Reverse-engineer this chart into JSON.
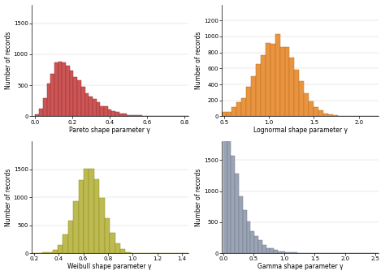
{
  "pareto": {
    "color": "#CC5555",
    "edge_color": "#993333",
    "xlabel": "Pareto shape parameter γ",
    "xlim": [
      -0.02,
      0.82
    ],
    "xticks": [
      0.0,
      0.2,
      0.4,
      0.6,
      0.8
    ],
    "ylim": [
      0,
      1800
    ],
    "yticks": [
      0,
      500,
      1000,
      1500
    ],
    "shape": 3.5,
    "scale": 0.055,
    "n": 9500,
    "bins": 40,
    "clip_min": 0.0,
    "clip_max": 0.82,
    "dist": "gamma"
  },
  "lognormal": {
    "color": "#E89440",
    "edge_color": "#C07020",
    "xlabel": "Lognormal shape parameter γ",
    "xlim": [
      0.48,
      2.22
    ],
    "xticks": [
      0.5,
      1.0,
      1.5,
      2.0
    ],
    "ylim": [
      0,
      1400
    ],
    "yticks": [
      0,
      200,
      400,
      600,
      800,
      1000,
      1200
    ],
    "mean": 1.08,
    "std": 0.22,
    "n": 10000,
    "bins": 34,
    "clip_min": 0.48,
    "clip_max": 2.3,
    "dist": "normal"
  },
  "weibull": {
    "color": "#BCBA50",
    "edge_color": "#909020",
    "xlabel": "Weibull shape parameter γ",
    "xlim": [
      0.18,
      1.45
    ],
    "xticks": [
      0.2,
      0.4,
      0.6,
      0.8,
      1.0,
      1.2,
      1.4
    ],
    "ylim": [
      0,
      2000
    ],
    "yticks": [
      0,
      500,
      1000,
      1500
    ],
    "mean": 0.65,
    "std": 0.11,
    "n": 10000,
    "bins": 30,
    "clip_min": 0.18,
    "clip_max": 1.45,
    "dist": "normal"
  },
  "gamma": {
    "color": "#9AA4B4",
    "edge_color": "#707888",
    "xlabel": "Gamma shape parameter γ",
    "xlim": [
      -0.02,
      2.55
    ],
    "xticks": [
      0.0,
      0.5,
      1.0,
      1.5,
      2.0,
      2.5
    ],
    "ylim": [
      0,
      1800
    ],
    "yticks": [
      0,
      500,
      1000,
      1500
    ],
    "shape": 1.3,
    "scale": 0.18,
    "n": 10000,
    "bins": 40,
    "clip_min": 0.0,
    "clip_max": 2.55,
    "dist": "gamma"
  },
  "ylabel": "Number of records",
  "bg_color": "#ffffff",
  "seed": 42
}
